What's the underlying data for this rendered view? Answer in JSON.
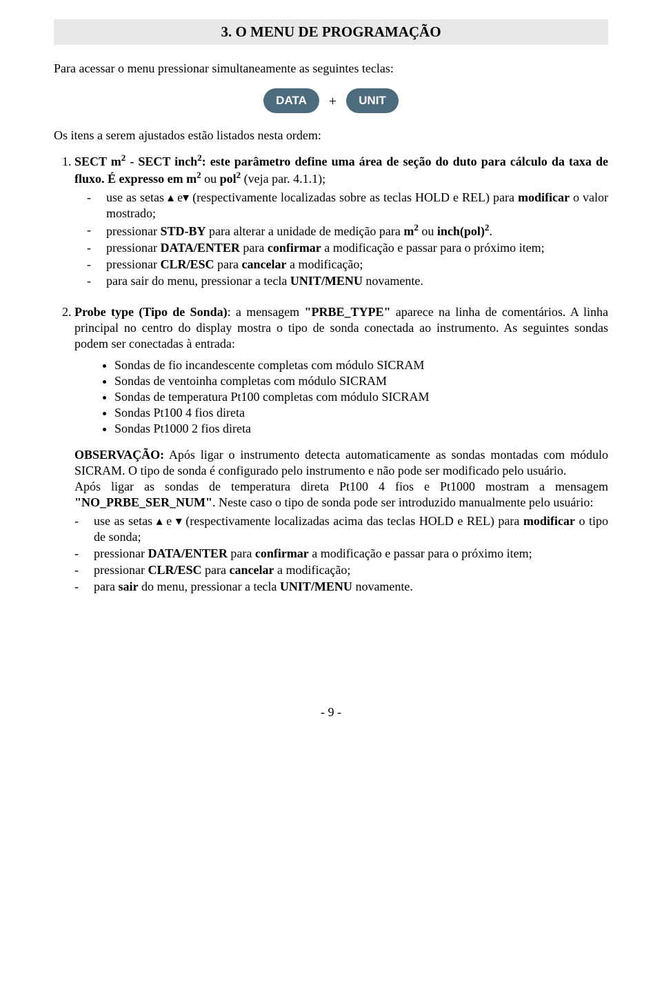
{
  "header": {
    "title": "3. O MENU DE PROGRAMAÇÃO"
  },
  "intro": {
    "line": "Para acessar o menu pressionar simultaneamente as seguintes teclas:"
  },
  "buttons": {
    "left": "DATA",
    "plus": "+",
    "right": "UNIT",
    "pill_bg": "#4e6a7d",
    "pill_fg": "#ffffff"
  },
  "items_intro": "Os itens a serem ajustados estão listados nesta ordem:",
  "item1": {
    "lead_a": "SECT m",
    "lead_b": " - SECT inch",
    "lead_c": ": este parâmetro define uma área de seção  do duto para cálculo da taxa de fluxo. É expresso em ",
    "expr_m": "m",
    "expr_or": " ou ",
    "expr_pol": "pol",
    "expr_tail": " (veja par. 4.1.1);",
    "sub": {
      "a1": "use as setas ▴  e▾  (respectivamente localizadas sobre as teclas HOLD e REL) para ",
      "a2": "modificar",
      "a3": " o valor mostrado;",
      "b1": "pressionar ",
      "b2": "STD-BY",
      "b3": " para alterar a unidade de medição para ",
      "b_m": "m",
      "b_or": " ou ",
      "b_inch": "inch(pol)",
      "b_tail": ".",
      "c1": "pressionar ",
      "c2": "DATA/ENTER",
      "c3": " para ",
      "c4": "confirmar",
      "c5": " a modificação e passar para o próximo item;",
      "d1": "pressionar ",
      "d2": "CLR/ESC",
      "d3": " para ",
      "d4": "cancelar",
      "d5": " a modificação;",
      "e1": "para sair do menu, pressionar a tecla ",
      "e2": "UNIT/MENU",
      "e3": " novamente."
    }
  },
  "item2": {
    "lead_a": "Probe type (Tipo de Sonda)",
    "lead_b": ": a mensagem ",
    "lead_c": "\"PRBE_TYPE\"",
    "lead_d": " aparece na linha de comentários. A linha principal no centro do display mostra o tipo de sonda conectada ao instrumento. As seguintes sondas podem ser conectadas à entrada:",
    "bullets": {
      "a": "Sondas de fio incandescente completas com módulo SICRAM",
      "b": "Sondas de ventoinha completas com módulo SICRAM",
      "c": "Sondas de temperatura Pt100 completas com módulo SICRAM",
      "d": "Sondas Pt100 4 fios direta",
      "e": "Sondas Pt1000 2 fios direta"
    },
    "obs": {
      "label": "OBSERVAÇÃO:",
      "p1": " Após ligar o instrumento detecta automaticamente as sondas montadas com módulo SICRAM. O tipo de sonda é configurado pelo instrumento e não pode ser modificado pelo usuário.",
      "p2a": "Após ligar as sondas de temperatura direta Pt100 4 fios e Pt1000 mostram a mensagem ",
      "p2b": "\"NO_PRBE_SER_NUM\"",
      "p2c": ". Neste caso o tipo de sonda pode ser introduzido manualmente pelo usuário:"
    },
    "sub": {
      "a1": "use as setas ▴  e ▾  (respectivamente localizadas acima das teclas HOLD e REL) para ",
      "a2": "modificar",
      "a3": " o tipo de sonda;",
      "b1": "pressionar ",
      "b2": "DATA/ENTER",
      "b3": " para ",
      "b4": "confirmar",
      "b5": " a modificação e passar para o próximo item;",
      "c1": "pressionar ",
      "c2": "CLR/ESC",
      "c3": " para ",
      "c4": "cancelar",
      "c5": " a modificação;",
      "d1": "para ",
      "d2": "sair",
      "d3": " do menu, pressionar a tecla ",
      "d4": "UNIT/MENU",
      "d5": " novamente."
    }
  },
  "page_number": "-  9  -"
}
